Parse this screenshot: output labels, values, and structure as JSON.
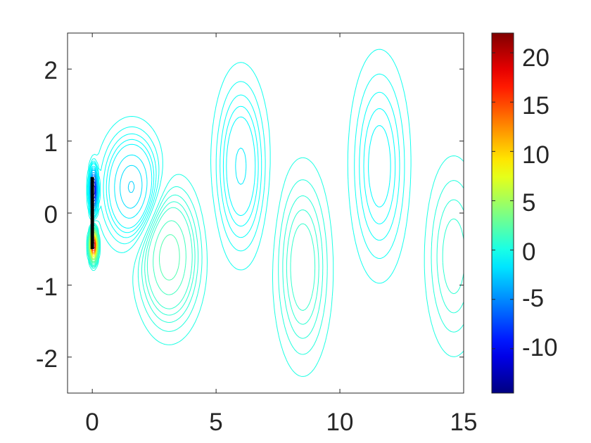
{
  "chart_data": {
    "type": "contour",
    "title": "",
    "xlabel": "",
    "ylabel": "",
    "xlim": [
      -1,
      15
    ],
    "ylim": [
      -2.5,
      2.5
    ],
    "x_ticks": [
      "0",
      "5",
      "10",
      "15"
    ],
    "y_ticks": [
      "-2",
      "-1",
      "0",
      "1",
      "2"
    ],
    "colormap": "jet",
    "colorbar": {
      "range": [
        -14.5,
        22
      ],
      "ticks": [
        "-10",
        "-5",
        "0",
        "5",
        "10",
        "15",
        "20"
      ]
    },
    "plate": {
      "x": 0,
      "y_range": [
        -0.5,
        0.5
      ]
    },
    "levels": [
      -14,
      -12,
      -10,
      -8,
      -6,
      -5,
      -4,
      -3,
      -2.5,
      -2,
      -1.5,
      -1,
      -0.8,
      -0.6,
      -0.4,
      -0.2,
      0.2,
      0.4,
      0.6,
      0.8,
      1,
      1.5,
      2,
      2.5,
      3,
      4,
      5,
      6,
      8,
      10,
      12,
      14,
      16,
      18,
      20,
      22
    ],
    "vortices": [
      {
        "x": 1.6,
        "y": 0.35,
        "strength": -2.6,
        "sx": 0.95,
        "sy": 0.62
      },
      {
        "x": 3.1,
        "y": -0.6,
        "strength": 2.4,
        "sx": 1.0,
        "sy": 0.78
      },
      {
        "x": 6.0,
        "y": 0.65,
        "strength": -1.6,
        "sx": 0.85,
        "sy": 1.0
      },
      {
        "x": 8.5,
        "y": -0.75,
        "strength": 1.35,
        "sx": 0.9,
        "sy": 1.1
      },
      {
        "x": 11.6,
        "y": 0.65,
        "strength": -1.25,
        "sx": 0.95,
        "sy": 1.2
      },
      {
        "x": 14.6,
        "y": -0.6,
        "strength": 1.0,
        "sx": 0.95,
        "sy": 1.1
      }
    ],
    "plate_vorticity": [
      {
        "x": 0.05,
        "y": 0.32,
        "strength": -14.5,
        "sx": 0.12,
        "sy": 0.22
      },
      {
        "x": 0.05,
        "y": -0.45,
        "strength": 22,
        "sx": 0.12,
        "sy": 0.16
      }
    ]
  }
}
